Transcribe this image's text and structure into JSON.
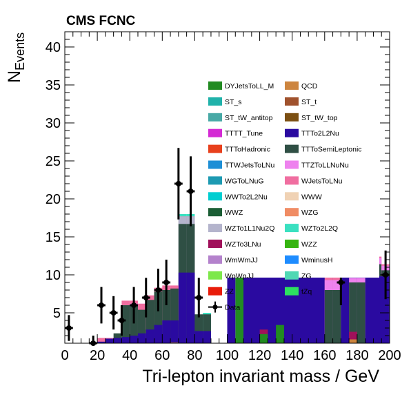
{
  "chart_data": {
    "type": "bar",
    "stacked": true,
    "title": "CMS FCNC",
    "xlabel": "Tri-lepton invariant mass / GeV",
    "ylabel_main": "N",
    "ylabel_sub": "Events",
    "xlim": [
      0,
      200
    ],
    "ylim": [
      1,
      42
    ],
    "x_ticks": [
      0,
      20,
      40,
      60,
      80,
      100,
      120,
      140,
      160,
      180,
      200
    ],
    "y_ticks": [
      5,
      10,
      15,
      20,
      25,
      30,
      35,
      40
    ],
    "bin_width": 5,
    "legend_position": "right",
    "series": [
      {
        "name": "DYJetsToLL_M",
        "color": "#228b22",
        "bins": [
          [
            105,
            0,
            110,
            9.8
          ],
          [
            110,
            0,
            115,
            9.8
          ],
          [
            120,
            0,
            125,
            2.2
          ],
          [
            130,
            0,
            135,
            3.4
          ]
        ]
      },
      {
        "name": "QCD",
        "color": "#cd853f",
        "bins": [
          [
            65,
            0,
            70,
            1.1
          ],
          [
            175,
            0,
            180,
            1.5
          ]
        ]
      },
      {
        "name": "ST_s",
        "color": "#20b2aa",
        "bins": []
      },
      {
        "name": "ST_t",
        "color": "#a0522d",
        "bins": []
      },
      {
        "name": "ST_tW_antitop",
        "color": "#48a9a6",
        "bins": []
      },
      {
        "name": "ST_tW_top",
        "color": "#7b4f12",
        "bins": []
      },
      {
        "name": "TTTT_Tune",
        "color": "#d42ad4",
        "bins": []
      },
      {
        "name": "TTTo2L2Nu",
        "color": "#2a0aa0",
        "bins": [
          [
            20,
            0,
            25,
            1.2
          ],
          [
            25,
            0,
            30,
            1.6
          ],
          [
            30,
            0,
            35,
            1.7
          ],
          [
            35,
            0,
            40,
            1.8
          ],
          [
            40,
            0,
            45,
            2.0
          ],
          [
            45,
            0,
            50,
            2.3
          ],
          [
            50,
            0,
            55,
            2.8
          ],
          [
            55,
            0,
            60,
            3.4
          ],
          [
            60,
            0,
            65,
            4.0
          ],
          [
            65,
            0,
            70,
            4.0
          ],
          [
            70,
            0,
            75,
            10.3
          ],
          [
            75,
            0,
            80,
            10.3
          ],
          [
            80,
            0,
            85,
            2.6
          ],
          [
            85,
            0,
            90,
            2.6
          ],
          [
            100,
            0,
            105,
            9.8
          ],
          [
            110,
            0,
            200,
            9.8
          ]
        ]
      },
      {
        "name": "TTToHadronic",
        "color": "#e8401c",
        "bins": []
      },
      {
        "name": "TTToSemiLeptonic",
        "color": "#2f4f44",
        "bins": [
          [
            30,
            0,
            35,
            2.3
          ],
          [
            35,
            0,
            40,
            6.0
          ],
          [
            40,
            0,
            45,
            6.0
          ],
          [
            45,
            0,
            50,
            5.4
          ],
          [
            50,
            0,
            55,
            6.7
          ],
          [
            55,
            0,
            60,
            7.8
          ],
          [
            60,
            0,
            65,
            8.0
          ],
          [
            65,
            0,
            70,
            8.2
          ],
          [
            70,
            0,
            75,
            16.7
          ],
          [
            75,
            0,
            80,
            16.7
          ],
          [
            80,
            0,
            85,
            4.8
          ],
          [
            85,
            0,
            90,
            4.8
          ],
          [
            160,
            0,
            165,
            8.0
          ],
          [
            165,
            0,
            170,
            8.0
          ],
          [
            175,
            0,
            180,
            9.0
          ],
          [
            180,
            0,
            185,
            9.0
          ],
          [
            185,
            0,
            190,
            10.4
          ],
          [
            190,
            0,
            195,
            11.4
          ],
          [
            195,
            0,
            200,
            10.6
          ]
        ]
      },
      {
        "name": "TTWJetsToLNu",
        "color": "#1e8fd6",
        "bins": []
      },
      {
        "name": "TTZToLLNuNu",
        "color": "#ee82ee",
        "bins": [
          [
            40,
            0,
            45,
            6.2
          ],
          [
            45,
            0,
            50,
            6.2
          ],
          [
            160,
            0,
            165,
            9.3
          ],
          [
            165,
            0,
            170,
            9.3
          ],
          [
            175,
            0,
            180,
            9.6
          ],
          [
            180,
            0,
            185,
            9.6
          ],
          [
            185,
            0,
            190,
            11.8
          ],
          [
            190,
            0,
            195,
            12.2
          ],
          [
            195,
            0,
            200,
            11.2
          ]
        ]
      },
      {
        "name": "WGToLNuG",
        "color": "#1d9ab2",
        "bins": []
      },
      {
        "name": "WJetsToLNu",
        "color": "#f06ea0",
        "bins": [
          [
            20,
            0,
            25,
            1.7
          ],
          [
            25,
            0,
            30,
            1.7
          ],
          [
            35,
            0,
            40,
            6.6
          ],
          [
            40,
            0,
            45,
            6.6
          ],
          [
            45,
            0,
            50,
            6.2
          ],
          [
            50,
            0,
            55,
            7.3
          ],
          [
            55,
            0,
            60,
            8.3
          ],
          [
            60,
            0,
            65,
            8.6
          ],
          [
            65,
            0,
            70,
            8.6
          ],
          [
            70,
            0,
            75,
            17.7
          ],
          [
            75,
            0,
            80,
            17.7
          ],
          [
            160,
            0,
            165,
            9.8
          ],
          [
            165,
            0,
            170,
            9.8
          ],
          [
            175,
            0,
            180,
            10.0
          ],
          [
            180,
            0,
            185,
            10.0
          ],
          [
            185,
            0,
            190,
            12.4
          ],
          [
            190,
            0,
            195,
            12.4
          ],
          [
            195,
            0,
            200,
            11.4
          ]
        ]
      },
      {
        "name": "WWTo2L2Nu",
        "color": "#00ced1",
        "bins": []
      },
      {
        "name": "WWW",
        "color": "#f0d2b4",
        "bins": []
      },
      {
        "name": "WWZ",
        "color": "#1b5e35",
        "bins": []
      },
      {
        "name": "WZG",
        "color": "#f08c64",
        "bins": []
      },
      {
        "name": "WZTo1L1Nu2Q",
        "color": "#b4b4cc",
        "bins": [
          [
            70,
            0,
            75,
            17.7
          ],
          [
            75,
            0,
            80,
            17.7
          ]
        ]
      },
      {
        "name": "WZTo2L2Q",
        "color": "#3ae0c0",
        "bins": [
          [
            70,
            0,
            75,
            18.0
          ],
          [
            75,
            0,
            80,
            18.0
          ],
          [
            85,
            0,
            90,
            5.0
          ]
        ]
      },
      {
        "name": "WZTo3LNu",
        "color": "#a0105a",
        "bins": [
          [
            120,
            0,
            125,
            2.8
          ],
          [
            175,
            0,
            180,
            2.5
          ]
        ]
      },
      {
        "name": "WZZ",
        "color": "#35b410",
        "bins": []
      },
      {
        "name": "WmWmJJ",
        "color": "#b482cc",
        "bins": []
      },
      {
        "name": "WminusH",
        "color": "#1e8cff",
        "bins": []
      },
      {
        "name": "WpWpJJ",
        "color": "#7de84a",
        "bins": []
      },
      {
        "name": "ZG",
        "color": "#50d8b4",
        "bins": []
      },
      {
        "name": "ZZ",
        "color": "#e81c0a",
        "bins": []
      },
      {
        "name": "tZq",
        "color": "#2de060",
        "bins": []
      }
    ],
    "data": {
      "name": "Data",
      "color": "#000000",
      "points": [
        {
          "x": 2.5,
          "y": 3,
          "err": 1.7
        },
        {
          "x": 17.5,
          "y": 1,
          "err": 1.0
        },
        {
          "x": 22.5,
          "y": 6,
          "err": 2.4
        },
        {
          "x": 30,
          "y": 5,
          "err": 2.2
        },
        {
          "x": 35,
          "y": 4,
          "err": 2.0
        },
        {
          "x": 42.5,
          "y": 6,
          "err": 2.4
        },
        {
          "x": 50,
          "y": 7,
          "err": 2.6
        },
        {
          "x": 57.5,
          "y": 8,
          "err": 2.8
        },
        {
          "x": 62.5,
          "y": 9,
          "err": 3.0
        },
        {
          "x": 70,
          "y": 22,
          "err": 4.7
        },
        {
          "x": 77.5,
          "y": 21,
          "err": 4.6
        },
        {
          "x": 82.5,
          "y": 7,
          "err": 2.6
        },
        {
          "x": 170,
          "y": 9,
          "err": 3.0
        },
        {
          "x": 190,
          "y": 16,
          "err": 4.0
        },
        {
          "x": 197.5,
          "y": 10,
          "err": 3.2
        }
      ]
    }
  }
}
